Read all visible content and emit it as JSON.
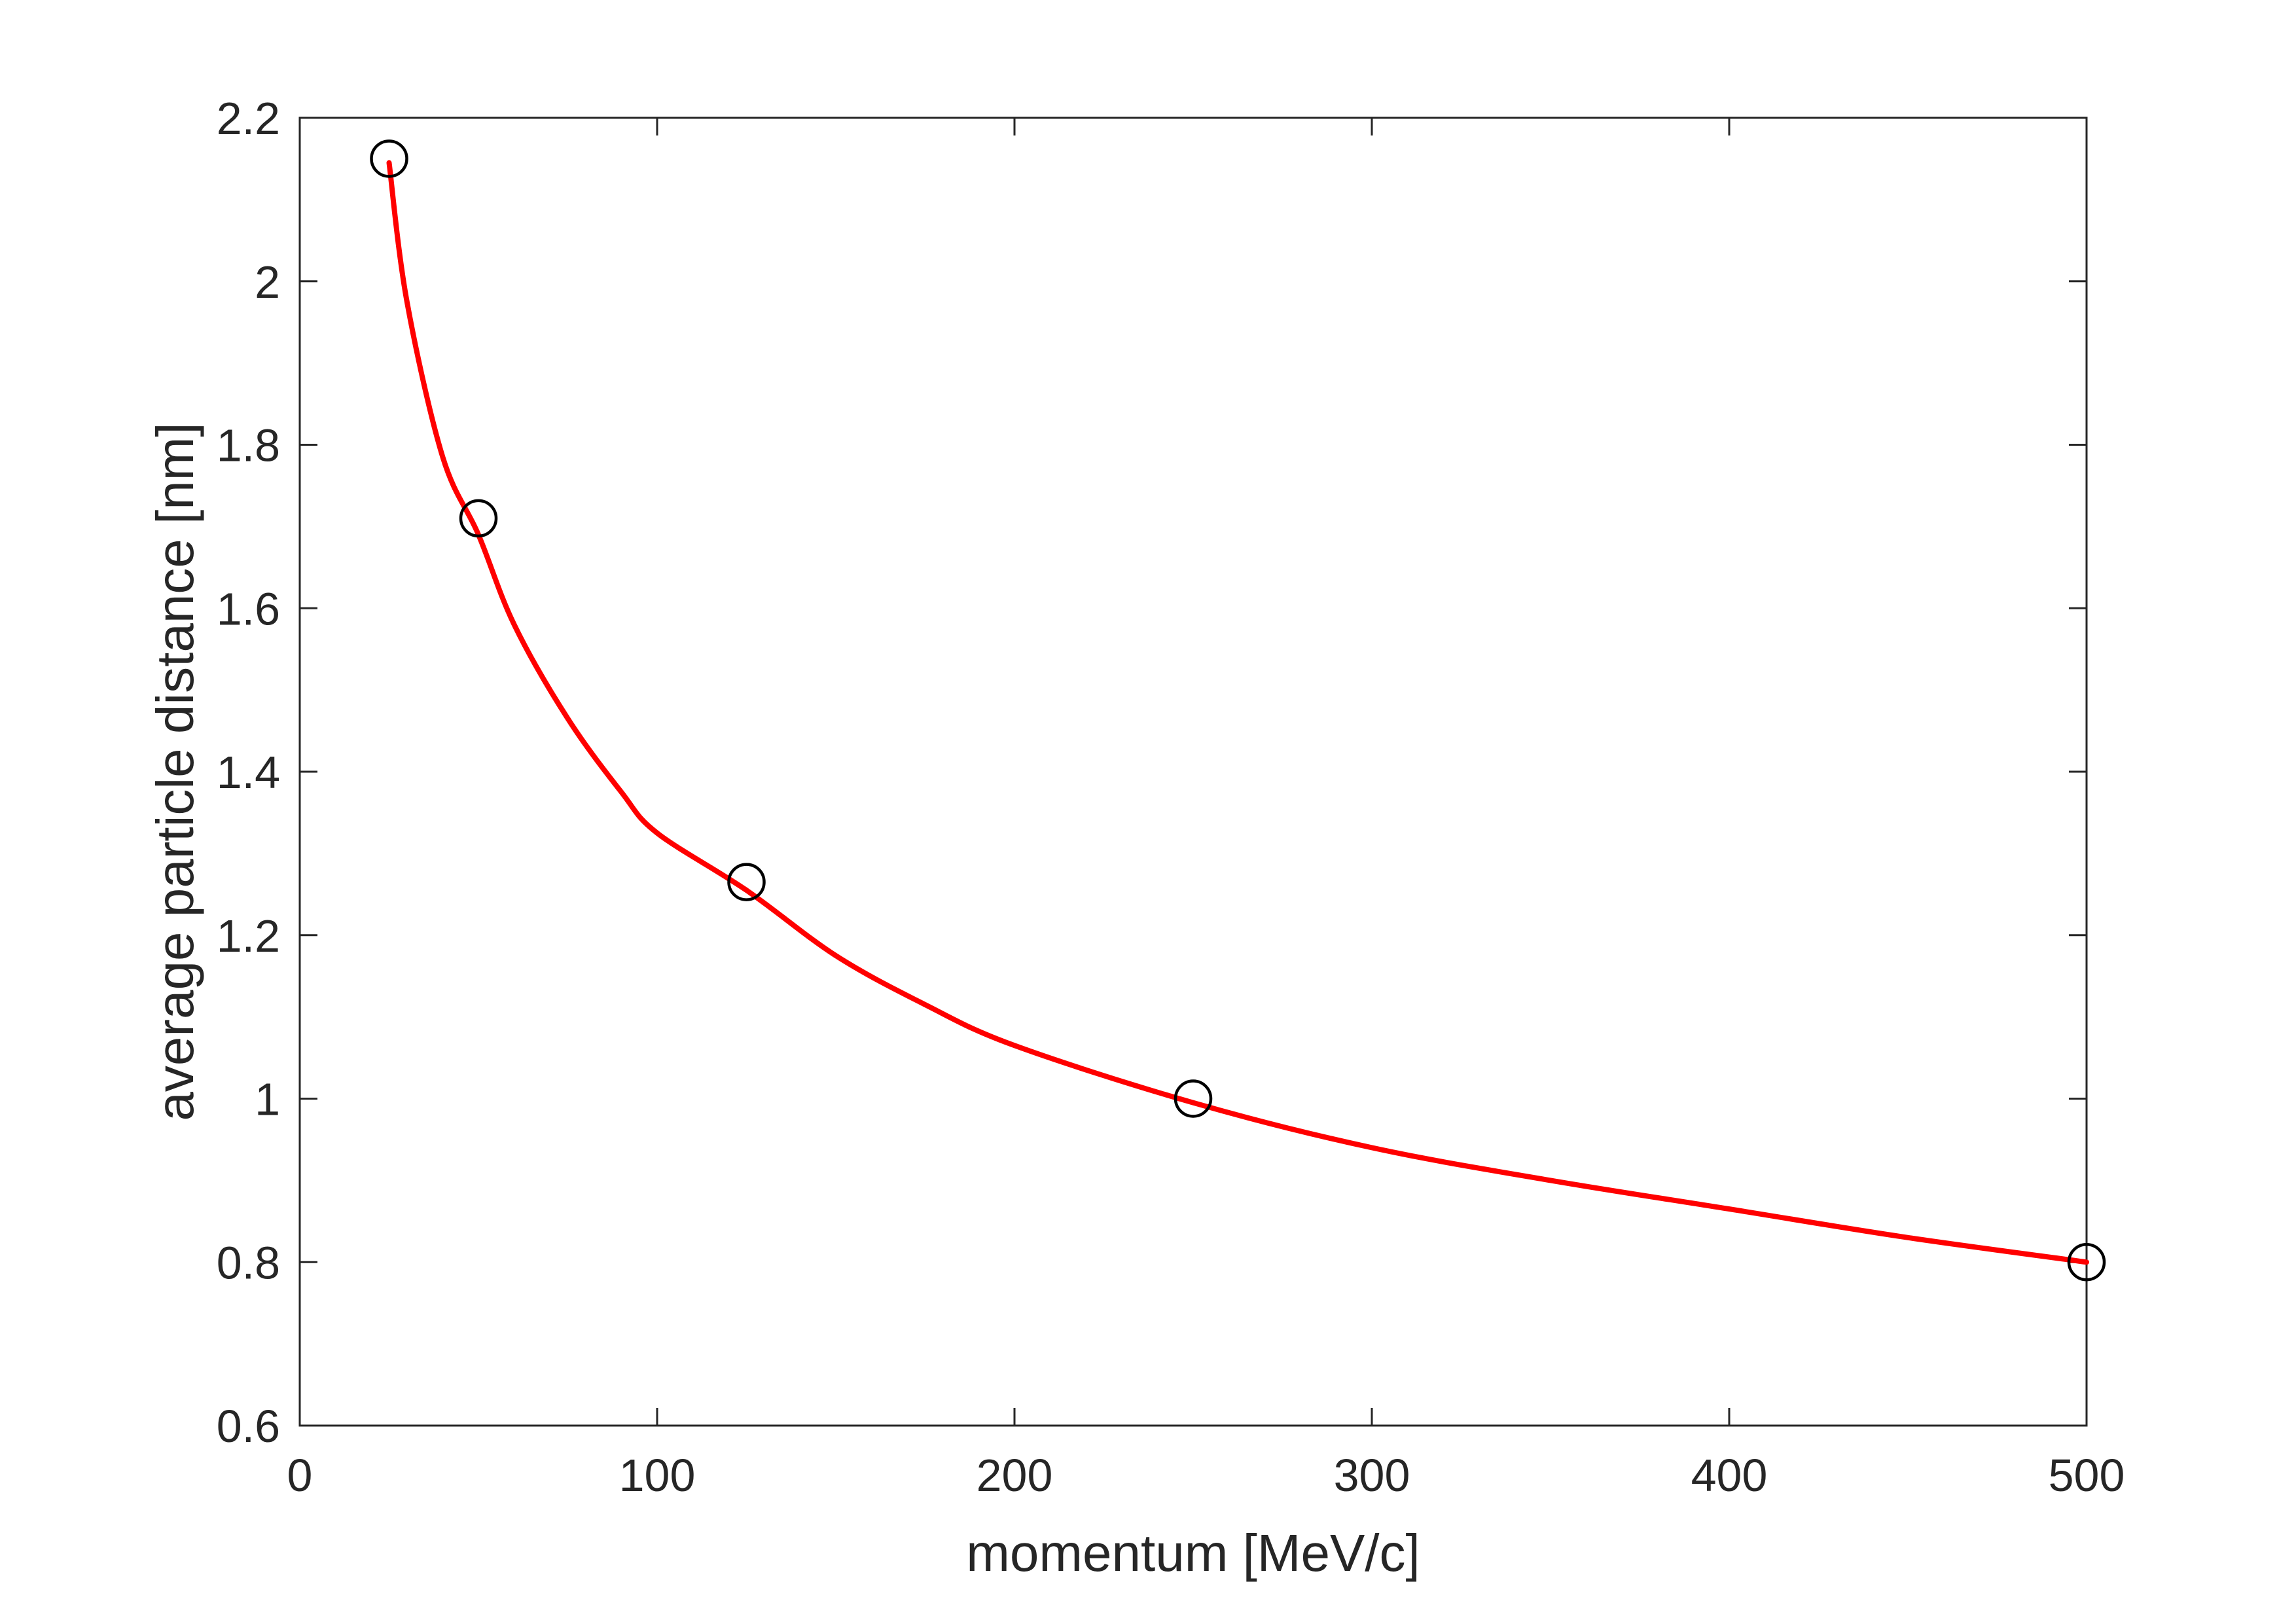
{
  "chart_data": {
    "type": "scatter",
    "title": "",
    "xlabel": "momentum [MeV/c]",
    "ylabel": "average particle distance [nm]",
    "xlim": [
      0,
      500
    ],
    "ylim": [
      0.6,
      2.2
    ],
    "xticks": [
      0,
      100,
      200,
      300,
      400,
      500
    ],
    "yticks": [
      0.6,
      0.8,
      1,
      1.2,
      1.4,
      1.6,
      1.8,
      2,
      2.2
    ],
    "xtick_labels": [
      "0",
      "100",
      "200",
      "300",
      "400",
      "500"
    ],
    "ytick_labels": [
      "0.6",
      "0.8",
      "1",
      "1.2",
      "1.4",
      "1.6",
      "1.8",
      "2",
      "2.2"
    ],
    "grid": false,
    "box": true,
    "series": [
      {
        "type": "scatter",
        "marker": "open-circle",
        "color": "#000000",
        "x": [
          25,
          50,
          125,
          250,
          500
        ],
        "y": [
          2.15,
          1.71,
          1.265,
          1.0,
          0.8
        ]
      },
      {
        "type": "line",
        "color": "#ff0000",
        "x": [
          25,
          30,
          40,
          50,
          60,
          75,
          90,
          100,
          125,
          150,
          175,
          200,
          250,
          300,
          350,
          400,
          450,
          500
        ],
        "y": [
          2.145,
          1.975,
          1.785,
          1.69,
          1.58,
          1.465,
          1.375,
          1.325,
          1.255,
          1.175,
          1.115,
          1.065,
          0.995,
          0.94,
          0.9,
          0.865,
          0.83,
          0.8
        ]
      }
    ]
  }
}
